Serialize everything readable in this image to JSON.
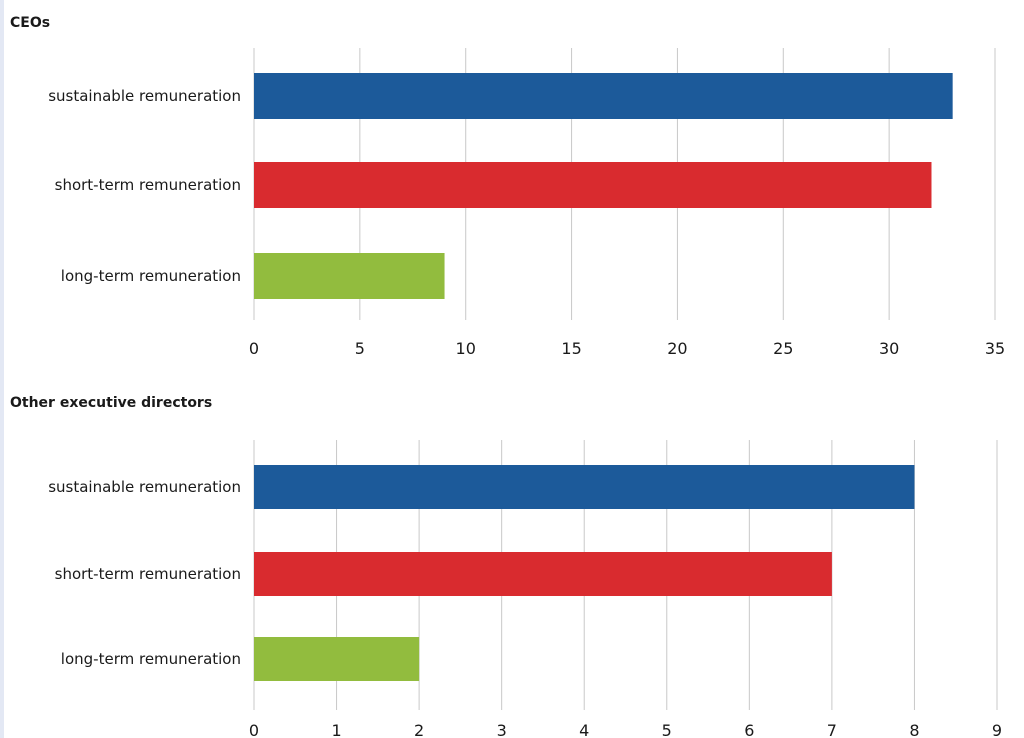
{
  "colors": {
    "sustainable": "#1c5a9a",
    "short_term": "#d92b2f",
    "long_term": "#92bc3e",
    "grid": "#c8c8c8"
  },
  "chart_data": [
    {
      "type": "bar",
      "orientation": "horizontal",
      "title": "CEOs",
      "categories": [
        "sustainable remuneration",
        "short-term remuneration",
        "long-term remuneration"
      ],
      "values": [
        33,
        32,
        9
      ],
      "colors": [
        "#1c5a9a",
        "#d92b2f",
        "#92bc3e"
      ],
      "xlim": [
        0,
        35
      ],
      "xticks": [
        0,
        5,
        10,
        15,
        20,
        25,
        30,
        35
      ],
      "grid": "vertical",
      "legend": "none"
    },
    {
      "type": "bar",
      "orientation": "horizontal",
      "title": "Other executive directors",
      "categories": [
        "sustainable remuneration",
        "short-term remuneration",
        "long-term remuneration"
      ],
      "values": [
        8,
        7,
        2
      ],
      "colors": [
        "#1c5a9a",
        "#d92b2f",
        "#92bc3e"
      ],
      "xlim": [
        0,
        9
      ],
      "xticks": [
        0,
        1,
        2,
        3,
        4,
        5,
        6,
        7,
        8,
        9
      ],
      "grid": "vertical",
      "legend": "none"
    }
  ]
}
